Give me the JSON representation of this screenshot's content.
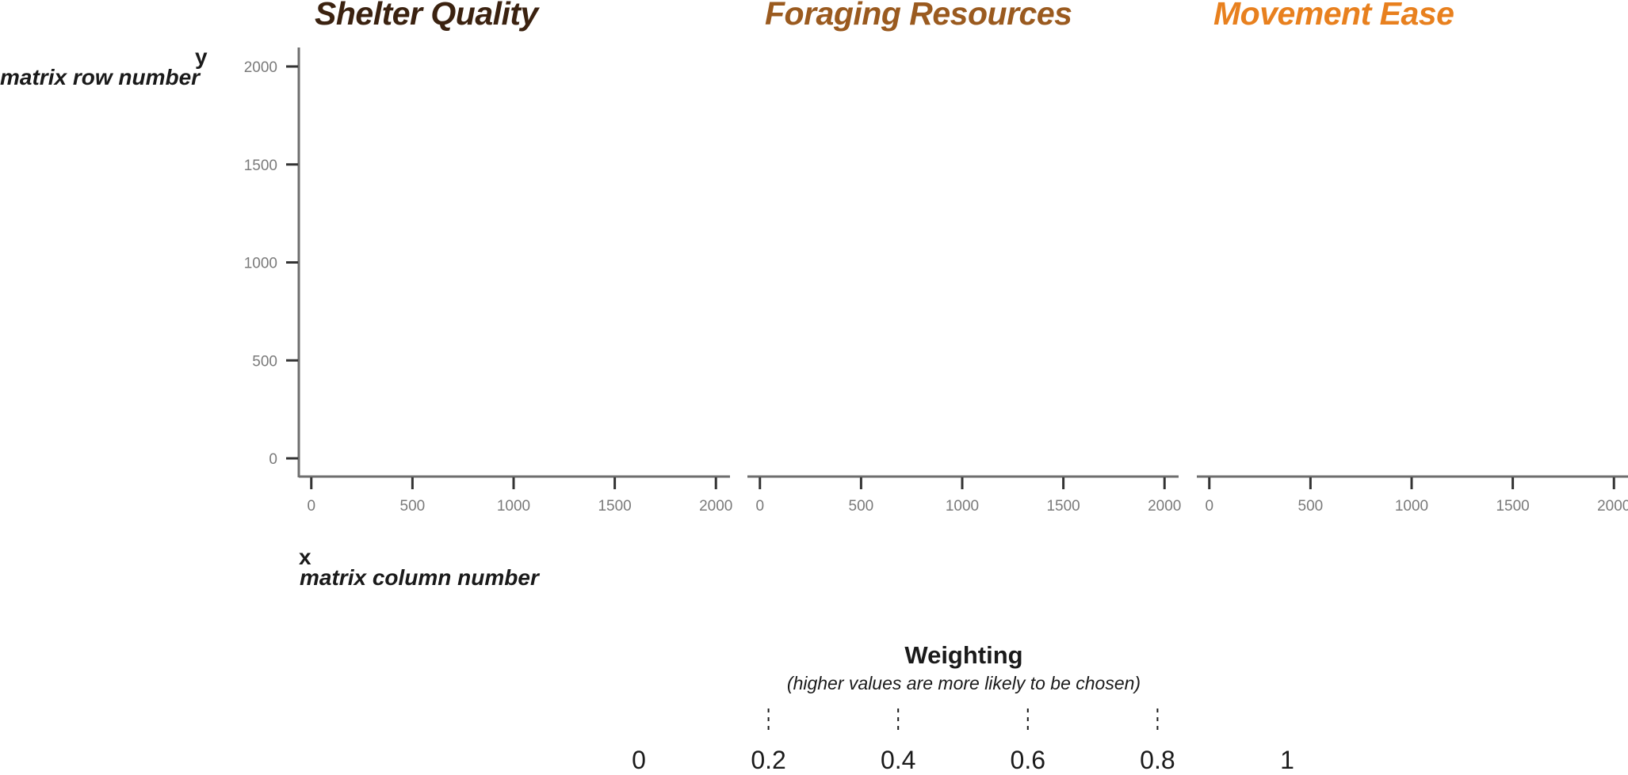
{
  "chart_data": {
    "type": "heatmap",
    "panels": [
      {
        "title": "Shelter Quality",
        "title_color": "#3b2210"
      },
      {
        "title": "Foraging Resources",
        "title_color": "#9a5a1f"
      },
      {
        "title": "Movement Ease",
        "title_color": "#e8801e"
      }
    ],
    "x_axis": {
      "letter": "x",
      "label": "matrix column number",
      "ticks": [
        0,
        500,
        1000,
        1500,
        2000
      ],
      "range": [
        -50,
        2050
      ]
    },
    "y_axis": {
      "letter": "y",
      "label": "matrix row number",
      "ticks": [
        0,
        500,
        1000,
        1500,
        2000
      ],
      "range": [
        -100,
        2100
      ]
    },
    "legend": {
      "title": "Weighting",
      "subtitle": "(higher values are more likely to be chosen)",
      "labels": [
        "0",
        "0.2",
        "0.4",
        "0.6",
        "0.8",
        "1"
      ],
      "breaks": [
        0,
        0.2,
        0.4,
        0.6,
        0.8,
        1
      ],
      "tick_breaks": [
        0.2,
        0.4,
        0.6,
        0.8
      ]
    },
    "colors": {
      "axis": "#6e6e6e",
      "tick": "#333333",
      "tick_label": "#7a7a7a",
      "text": "#1a1a1a"
    }
  }
}
